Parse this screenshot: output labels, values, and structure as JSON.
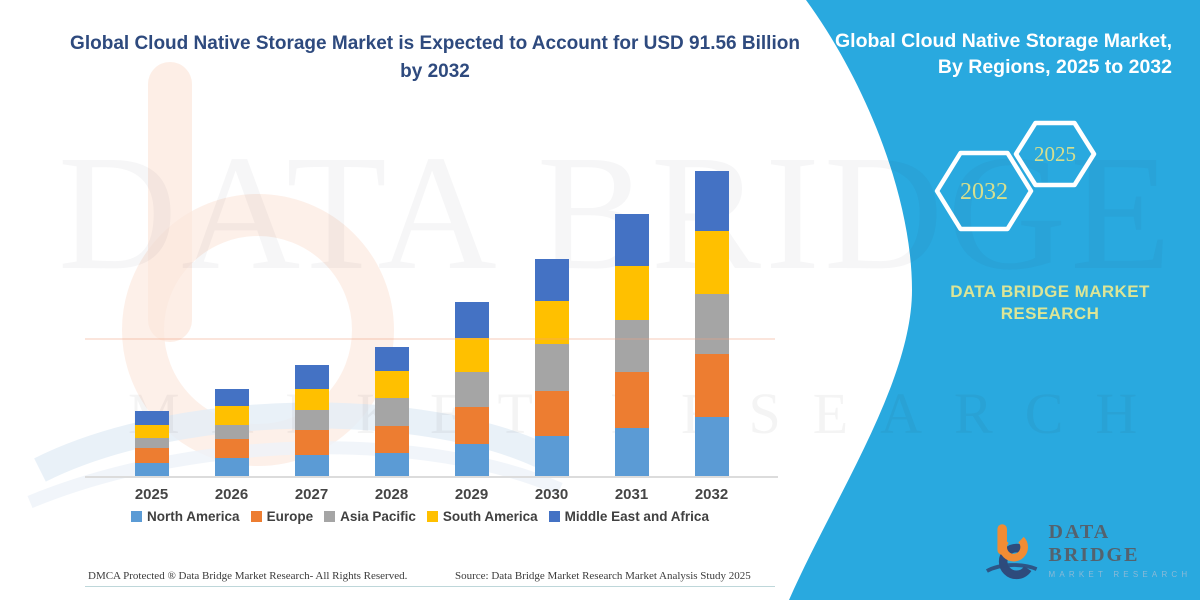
{
  "left_section": {
    "title": "Global Cloud Native Storage Market is Expected to Account for USD 91.56 Billion by 2032"
  },
  "panel": {
    "title_line1": "Global Cloud Native Storage Market,",
    "title_line2": "By Regions, 2025 to 2032",
    "hexagons": [
      {
        "label": "2032"
      },
      {
        "label": "2025"
      }
    ],
    "brand_line1": "DATA BRIDGE MARKET",
    "brand_line2": "RESEARCH",
    "accent_color": "#29A9DF",
    "hex_text_color": "#D6DF8E"
  },
  "watermark": {
    "line1": "DATA BRIDGE",
    "line2": "MARKET RESEARCH"
  },
  "logo": {
    "name": "DATA BRIDGE",
    "sub": "MARKET RESEARCH"
  },
  "footer": {
    "left": "DMCA Protected ® Data Bridge Market Research-  All Rights Reserved.",
    "right": "Source: Data Bridge Market Research  Market Analysis Study 2025"
  },
  "chart_data": {
    "type": "bar",
    "stacked": true,
    "title": "Global Cloud Native Storage Market is Expected to Account for USD 91.56 Billion by 2032",
    "unit": "USD Billion",
    "categories": [
      "2025",
      "2026",
      "2027",
      "2028",
      "2029",
      "2030",
      "2031",
      "2032"
    ],
    "series": [
      {
        "name": "North America",
        "color": "#5B9BD5",
        "values": [
          4.3,
          5.7,
          6.7,
          7.2,
          9.8,
          12.3,
          14.7,
          17.9
        ]
      },
      {
        "name": "Europe",
        "color": "#ED7D31",
        "values": [
          4.5,
          5.7,
          7.3,
          8.1,
          11.2,
          13.4,
          16.8,
          18.8
        ]
      },
      {
        "name": "Asia Pacific",
        "color": "#A5A5A5",
        "values": [
          3.0,
          4.3,
          6.2,
          8.4,
          10.3,
          14.0,
          15.5,
          18.0
        ]
      },
      {
        "name": "South America",
        "color": "#FFC000",
        "values": [
          3.8,
          5.5,
          6.2,
          8.1,
          10.4,
          13.0,
          16.0,
          19.0
        ]
      },
      {
        "name": "Middle East and Africa",
        "color": "#4472C4",
        "values": [
          4.1,
          5.1,
          7.0,
          7.2,
          10.8,
          12.6,
          15.8,
          17.9
        ]
      }
    ],
    "totals": [
      19.7,
      26.3,
      33.4,
      39.0,
      52.5,
      65.3,
      78.8,
      91.56
    ],
    "ylim": [
      0,
      95
    ],
    "xlabel": "",
    "ylabel": "",
    "grid": false,
    "y_axis_visible": false,
    "legend_position": "bottom"
  }
}
